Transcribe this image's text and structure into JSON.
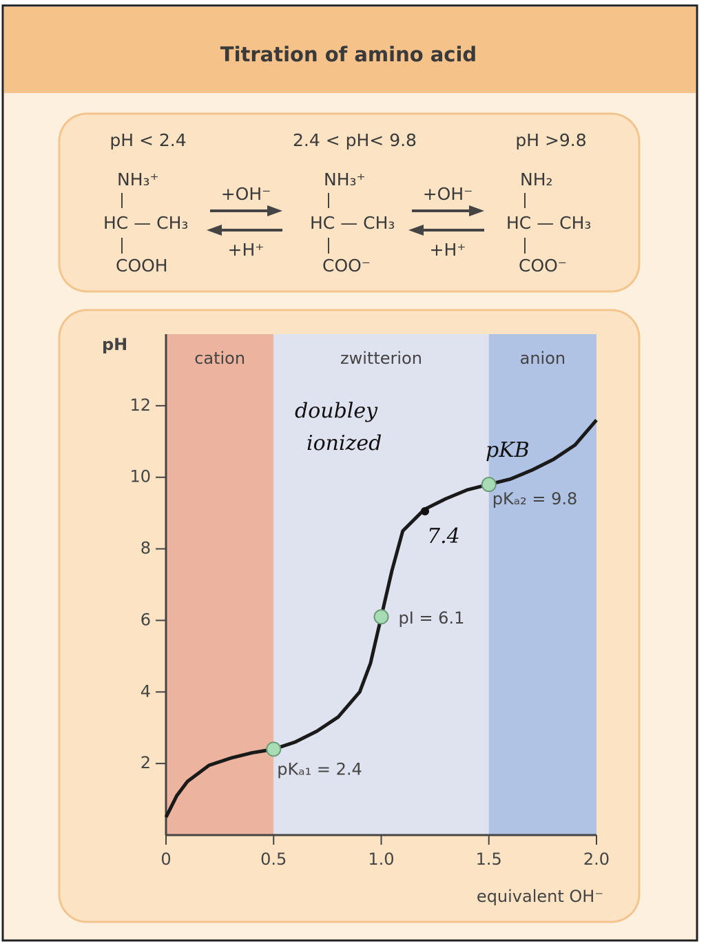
{
  "title": "Titration of amino acid",
  "species": [
    {
      "condition": "pH < 2.4",
      "top": "NH₃⁺",
      "middle": "HC — CH₃",
      "bottom": "COOH"
    },
    {
      "condition": "2.4 < pH< 9.8",
      "top": "NH₃⁺",
      "middle": "HC — CH₃",
      "bottom": "COO⁻"
    },
    {
      "condition": "pH >9.8",
      "top": "NH₂",
      "middle": "HC — CH₃",
      "bottom": "COO⁻"
    }
  ],
  "arrows": [
    {
      "forward": "+OH⁻",
      "reverse": "+H⁺"
    },
    {
      "forward": "+OH⁻",
      "reverse": "+H⁺"
    }
  ],
  "chart_data": {
    "type": "line",
    "y_label": "pH",
    "x_label": "equivalent OH⁻",
    "xlim": [
      0,
      2
    ],
    "ylim": [
      0,
      14
    ],
    "xticks": [
      0,
      0.5,
      {
        "value": 1,
        "label": "1.0"
      },
      1.5,
      {
        "value": 2,
        "label": "2.0"
      }
    ],
    "yticks": [
      2,
      4,
      6,
      8,
      10,
      12
    ],
    "regions": [
      {
        "name": "cation",
        "start": 0,
        "end": 0.5,
        "color": "#ecb49e"
      },
      {
        "name": "zwitterion",
        "start": 0.5,
        "end": 1.5,
        "color": "#dfe3ef"
      },
      {
        "name": "anion",
        "start": 1.5,
        "end": 2,
        "color": "#b0c3e4"
      }
    ],
    "x": [
      0,
      0.05,
      0.1,
      0.2,
      0.3,
      0.4,
      0.5,
      0.6,
      0.7,
      0.8,
      0.9,
      0.95,
      1.0,
      1.05,
      1.1,
      1.2,
      1.3,
      1.4,
      1.5,
      1.6,
      1.7,
      1.8,
      1.9,
      2.0
    ],
    "series": [
      {
        "color": "#1a1a1a",
        "values": [
          0.5,
          1.1,
          1.5,
          1.95,
          2.15,
          2.3,
          2.4,
          2.6,
          2.9,
          3.3,
          4.0,
          4.8,
          6.1,
          7.4,
          8.5,
          9.1,
          9.4,
          9.65,
          9.8,
          9.95,
          10.2,
          10.5,
          10.9,
          11.6
        ]
      }
    ],
    "markers": [
      {
        "x": 0.5,
        "y": 2.4,
        "label": "pKₐ₁ = 2.4"
      },
      {
        "x": 1.0,
        "y": 6.1,
        "label": "pI = 6.1"
      },
      {
        "x": 1.5,
        "y": 9.8,
        "label": "pKₐ₂ = 9.8"
      }
    ],
    "marker_color": "#a8dcb4",
    "annotations": [
      "doubley",
      "ionized",
      "pKB",
      "7.4"
    ]
  }
}
